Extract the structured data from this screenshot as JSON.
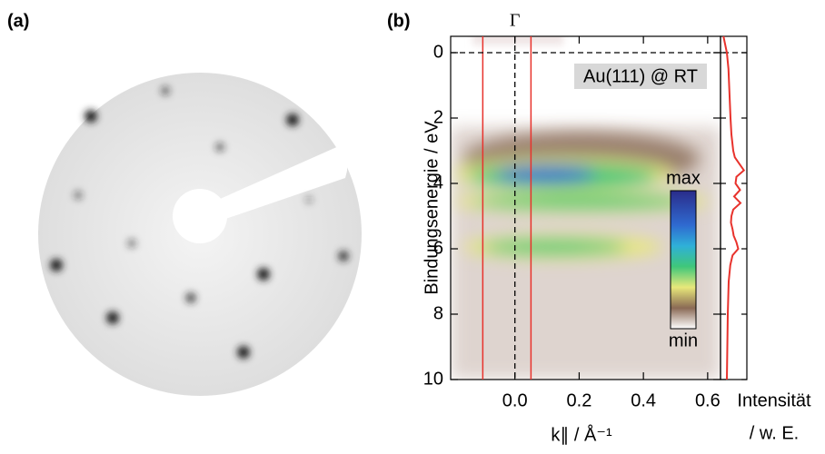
{
  "panels": {
    "a": "(a)",
    "b": "(b)"
  },
  "chart_data": [
    {
      "type": "heatmap",
      "xlabel": "k∥ / Å⁻¹",
      "ylabel": "Bindungsenergie / eV",
      "xlim": [
        -0.2,
        0.64
      ],
      "xticks": [
        {
          "value": 0,
          "label": "0.0"
        },
        0.2,
        0.4,
        0.6
      ],
      "ylim": [
        -0.5,
        10
      ],
      "yticks": [
        0,
        2,
        4,
        6,
        8,
        10
      ],
      "y_inverted": true,
      "annotation": "Au(111) @ RT",
      "gamma": {
        "label": "Γ",
        "x": 0
      },
      "vlines": [
        -0.1,
        0.05
      ],
      "vline_color": "#e8322c",
      "hline": 0,
      "colorbar": {
        "max": "max",
        "min": "min"
      }
    },
    {
      "type": "line",
      "xlabel": [
        "Intensität",
        "/ w. E."
      ],
      "color": "#e8322c",
      "xlim": [
        0,
        1
      ],
      "x": [
        -0.5,
        0,
        0.5,
        1,
        1.5,
        2,
        2.5,
        3,
        3.2,
        3.4,
        3.6,
        3.8,
        4.0,
        4.2,
        4.4,
        4.6,
        4.8,
        5.0,
        5.2,
        5.4,
        5.6,
        5.8,
        6.0,
        6.2,
        6.5,
        7,
        7.5,
        8,
        9,
        10
      ],
      "values": [
        0.05,
        0.2,
        0.27,
        0.3,
        0.33,
        0.36,
        0.4,
        0.48,
        0.55,
        0.75,
        0.95,
        0.62,
        0.58,
        0.78,
        0.52,
        0.8,
        0.48,
        0.4,
        0.38,
        0.45,
        0.5,
        0.62,
        0.7,
        0.45,
        0.35,
        0.28,
        0.26,
        0.24,
        0.22,
        0.2
      ]
    }
  ]
}
